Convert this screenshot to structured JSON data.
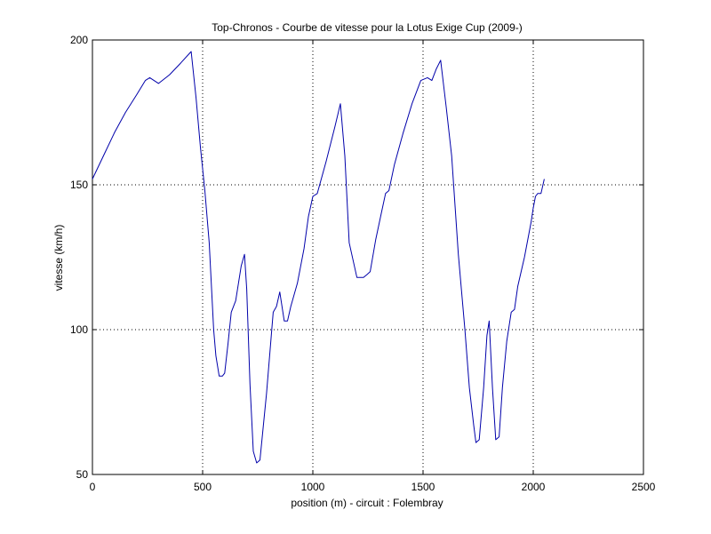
{
  "chart_data": {
    "type": "line",
    "title": "Top-Chronos - Courbe de vitesse pour la Lotus Exige Cup (2009-)",
    "xlabel": "position (m) - circuit : Folembray",
    "ylabel": "vitesse (km/h)",
    "xlim": [
      0,
      2500
    ],
    "ylim": [
      50,
      200
    ],
    "xticks": [
      0,
      500,
      1000,
      1500,
      2000,
      2500
    ],
    "yticks": [
      50,
      100,
      150,
      200
    ],
    "xtick_labels": [
      "0",
      "500",
      "1000",
      "1500",
      "2000",
      "2500"
    ],
    "ytick_labels": [
      "50",
      "100",
      "150",
      "200"
    ],
    "grid": true,
    "grid_style": "dotted",
    "line_color": "#0000aa",
    "series": [
      {
        "x": [
          0,
          50,
          100,
          150,
          200,
          240,
          260,
          300,
          350,
          400,
          448,
          470,
          490,
          510,
          530,
          540,
          550,
          560,
          575,
          590,
          600,
          615,
          630,
          650,
          675,
          690,
          700,
          715,
          730,
          745,
          760,
          790,
          820,
          835,
          850,
          870,
          885,
          900,
          930,
          960,
          980,
          1000,
          1020,
          1060,
          1100,
          1125,
          1145,
          1165,
          1200,
          1230,
          1245,
          1260,
          1285,
          1310,
          1330,
          1345,
          1370,
          1410,
          1450,
          1490,
          1520,
          1540,
          1560,
          1580,
          1605,
          1630,
          1660,
          1690,
          1710,
          1730,
          1740,
          1755,
          1775,
          1790,
          1800,
          1815,
          1830,
          1845,
          1860,
          1880,
          1900,
          1915,
          1930,
          1960,
          1990,
          2000,
          2010,
          2020,
          2035,
          2050
        ],
        "y": [
          152,
          160,
          168,
          175,
          181,
          186,
          187,
          185,
          188,
          192,
          196,
          180,
          163,
          148,
          130,
          115,
          100,
          91,
          84,
          84,
          85,
          95,
          106,
          110,
          122,
          126,
          114,
          81,
          58,
          54,
          55,
          78,
          106,
          108,
          113,
          103,
          103,
          108,
          116,
          128,
          139,
          146,
          147,
          158,
          170,
          178,
          160,
          130,
          118,
          118,
          119,
          120,
          131,
          140,
          147,
          148,
          157,
          168,
          178,
          186,
          187,
          186,
          190,
          193,
          177,
          160,
          126,
          100,
          80,
          67,
          61,
          62,
          80,
          98,
          103,
          80,
          62,
          63,
          80,
          96,
          106,
          107,
          115,
          125,
          137,
          142,
          146,
          147,
          147,
          152
        ]
      }
    ]
  }
}
